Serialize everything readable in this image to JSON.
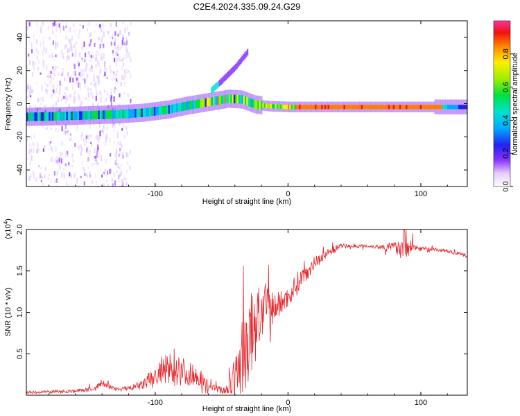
{
  "figure": {
    "title": "C2E4.2024.335.09.24.G29"
  },
  "chart_data": [
    {
      "type": "heatmap",
      "xlabel": "Height of straight line (km)",
      "ylabel": "Frequency (Hz)",
      "xlim": [
        -197,
        135
      ],
      "ylim": [
        -50,
        50
      ],
      "xticks": [
        -100,
        0,
        100
      ],
      "xtick_labels": [
        "-100",
        "0",
        "100"
      ],
      "yticks": [
        -40,
        -20,
        0,
        20,
        40
      ],
      "ytick_labels": [
        "-40",
        "-20",
        "0",
        "20",
        "40"
      ],
      "ridge": {
        "name": "main frequency ridge",
        "x": [
          -197,
          -170,
          -150,
          -130,
          -110,
          -90,
          -75,
          -60,
          -45,
          -35,
          -25,
          -15,
          0,
          20,
          60,
          100,
          135
        ],
        "y": [
          -8,
          -7.5,
          -7,
          -6.5,
          -5.5,
          -3.5,
          -1,
          1,
          3,
          2.5,
          -0.5,
          -1.5,
          -2,
          -2,
          -2,
          -2,
          -2
        ]
      },
      "spur": {
        "name": "upper rising branch",
        "x": [
          -58,
          -50,
          -40,
          -30
        ],
        "y": [
          8,
          14,
          22,
          32
        ]
      },
      "colorbar": {
        "label": "Normalized spectral amplitude",
        "range": [
          0,
          1
        ],
        "ticks": [
          0.0,
          0.2,
          0.4,
          0.6,
          0.8
        ],
        "tick_labels": [
          "0.0",
          "0.2",
          "0.4",
          "0.6",
          "0.8"
        ]
      }
    },
    {
      "type": "line",
      "xlabel": "Height of straight line (km)",
      "ylabel": "SNR (10 * v/v)",
      "scale_label": "(x10",
      "scale_exponent": "4",
      "xlim": [
        -197,
        135
      ],
      "ylim": [
        0,
        2.0
      ],
      "xticks": [
        -100,
        0,
        100
      ],
      "xtick_labels": [
        "-100",
        "0",
        "100"
      ],
      "yticks": [
        0.5,
        1.0,
        1.5,
        2.0
      ],
      "ytick_labels": [
        "0.5",
        "1.0",
        "1.5",
        "2.0"
      ],
      "series": [
        {
          "name": "SNR",
          "color": "#e8262b",
          "x": [
            -197,
            -180,
            -160,
            -145,
            -140,
            -130,
            -120,
            -110,
            -100,
            -95,
            -90,
            -85,
            -80,
            -75,
            -70,
            -65,
            -60,
            -55,
            -50,
            -45,
            -40,
            -35,
            -30,
            -25,
            -20,
            -15,
            -10,
            -5,
            0,
            5,
            10,
            15,
            20,
            30,
            40,
            50,
            60,
            70,
            80,
            85,
            88,
            90,
            95,
            100,
            110,
            120,
            130,
            135
          ],
          "y": [
            0.03,
            0.04,
            0.05,
            0.08,
            0.15,
            0.07,
            0.08,
            0.12,
            0.22,
            0.28,
            0.3,
            0.35,
            0.3,
            0.25,
            0.25,
            0.2,
            0.12,
            0.08,
            0.06,
            0.08,
            0.2,
            0.45,
            0.6,
            0.85,
            1.0,
            1.05,
            1.05,
            1.12,
            1.18,
            1.3,
            1.42,
            1.5,
            1.6,
            1.72,
            1.8,
            1.8,
            1.8,
            1.79,
            1.79,
            1.8,
            1.85,
            1.82,
            1.78,
            1.77,
            1.76,
            1.74,
            1.7,
            1.68
          ],
          "noise": [
            0.02,
            0.02,
            0.02,
            0.03,
            0.05,
            0.02,
            0.03,
            0.06,
            0.15,
            0.2,
            0.2,
            0.25,
            0.18,
            0.15,
            0.12,
            0.1,
            0.06,
            0.04,
            0.05,
            0.08,
            0.25,
            0.45,
            0.55,
            0.5,
            0.35,
            0.3,
            0.2,
            0.15,
            0.12,
            0.15,
            0.12,
            0.1,
            0.08,
            0.05,
            0.03,
            0.02,
            0.02,
            0.03,
            0.06,
            0.15,
            0.25,
            0.15,
            0.05,
            0.03,
            0.02,
            0.02,
            0.02,
            0.02
          ]
        }
      ]
    }
  ]
}
